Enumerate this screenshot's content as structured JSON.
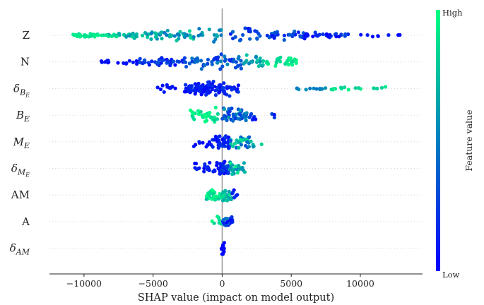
{
  "chart_data": {
    "type": "scatter",
    "subtype": "beeswarm",
    "title": "",
    "xlabel": "SHAP value (impact on model output)",
    "xlim": [
      -12500,
      14500
    ],
    "xticks": [
      -10000,
      -5000,
      0,
      5000,
      10000
    ],
    "xtick_labels": [
      "−10000",
      "−5000",
      "0",
      "5000",
      "10000"
    ],
    "colorbar": {
      "high_label": "High",
      "low_label": "Low",
      "title": "Feature value",
      "low_color": "#0000ff",
      "high_color": "#00ff80"
    },
    "grid": false,
    "features": [
      {
        "label": "Z",
        "base": "Z",
        "sub": "",
        "subsub": "",
        "segments": [
          {
            "from": -11000,
            "to": -8500,
            "n": 32,
            "c": [
              0.85,
              0.95
            ]
          },
          {
            "from": -8500,
            "to": -5500,
            "n": 30,
            "c": [
              0.55,
              0.9
            ]
          },
          {
            "from": -5500,
            "to": -2000,
            "n": 42,
            "c": [
              0.45,
              0.85
            ]
          },
          {
            "from": -2000,
            "to": 0,
            "n": 14,
            "c": [
              0.35,
              0.7
            ]
          },
          {
            "from": 600,
            "to": 3000,
            "n": 20,
            "c": [
              0.1,
              0.4
            ]
          },
          {
            "from": 3000,
            "to": 6000,
            "n": 28,
            "c": [
              0.05,
              0.4
            ]
          },
          {
            "from": 6000,
            "to": 9300,
            "n": 30,
            "c": [
              0.0,
              0.3
            ]
          },
          {
            "from": 10000,
            "to": 13000,
            "n": 8,
            "c": [
              0.0,
              0.15
            ]
          }
        ],
        "spread": 13
      },
      {
        "label": "N",
        "base": "N",
        "sub": "",
        "subsub": "",
        "segments": [
          {
            "from": -8800,
            "to": -6000,
            "n": 18,
            "c": [
              0.0,
              0.15
            ]
          },
          {
            "from": -6000,
            "to": -2500,
            "n": 40,
            "c": [
              0.0,
              0.35
            ]
          },
          {
            "from": -2500,
            "to": 1500,
            "n": 48,
            "c": [
              0.15,
              0.55
            ]
          },
          {
            "from": 1500,
            "to": 3000,
            "n": 20,
            "c": [
              0.5,
              0.8
            ]
          },
          {
            "from": 3000,
            "to": 5500,
            "n": 30,
            "c": [
              0.8,
              1.0
            ]
          }
        ],
        "spread": 13
      },
      {
        "label": "δ_{B_E}",
        "base": "δ",
        "sub": "B",
        "subsub": "E",
        "segments": [
          {
            "from": -5100,
            "to": -2700,
            "n": 12,
            "c": [
              0.0,
              0.1
            ]
          },
          {
            "from": -2700,
            "to": 0,
            "n": 90,
            "c": [
              0.0,
              0.2
            ]
          },
          {
            "from": 0,
            "to": 1200,
            "n": 22,
            "c": [
              0.0,
              0.3
            ]
          },
          {
            "from": 5000,
            "to": 7500,
            "n": 12,
            "c": [
              0.4,
              0.6
            ]
          },
          {
            "from": 7500,
            "to": 12000,
            "n": 16,
            "c": [
              0.8,
              1.0
            ]
          }
        ],
        "spread": 12
      },
      {
        "label": "B_E",
        "base": "B",
        "sub": "E",
        "subsub": "",
        "segments": [
          {
            "from": -2300,
            "to": 0,
            "n": 34,
            "c": [
              0.8,
              1.0
            ]
          },
          {
            "from": 0,
            "to": 1800,
            "n": 46,
            "c": [
              0.2,
              0.6
            ]
          },
          {
            "from": 1800,
            "to": 4200,
            "n": 10,
            "c": [
              0.0,
              0.3
            ]
          }
        ],
        "spread": 12
      },
      {
        "label": "M_E",
        "base": "M",
        "sub": "E",
        "subsub": "",
        "segments": [
          {
            "from": -2100,
            "to": -300,
            "n": 18,
            "c": [
              0.0,
              0.2
            ]
          },
          {
            "from": -300,
            "to": 600,
            "n": 40,
            "c": [
              0.0,
              0.25
            ]
          },
          {
            "from": 600,
            "to": 2000,
            "n": 28,
            "c": [
              0.3,
              0.9
            ]
          },
          {
            "from": 2000,
            "to": 3000,
            "n": 6,
            "c": [
              0.5,
              0.9
            ]
          }
        ],
        "spread": 12
      },
      {
        "label": "δ_{M_E}",
        "base": "δ",
        "sub": "M",
        "subsub": "E",
        "segments": [
          {
            "from": -2000,
            "to": -300,
            "n": 22,
            "c": [
              0.0,
              0.2
            ]
          },
          {
            "from": -300,
            "to": 500,
            "n": 36,
            "c": [
              0.0,
              0.3
            ]
          },
          {
            "from": 500,
            "to": 1700,
            "n": 26,
            "c": [
              0.5,
              1.0
            ]
          }
        ],
        "spread": 11
      },
      {
        "label": "AM",
        "base": "AM",
        "sub": "",
        "subsub": "",
        "segments": [
          {
            "from": -1200,
            "to": 0,
            "n": 28,
            "c": [
              0.75,
              1.0
            ]
          },
          {
            "from": 0,
            "to": 700,
            "n": 20,
            "c": [
              0.6,
              0.9
            ]
          },
          {
            "from": 700,
            "to": 1200,
            "n": 6,
            "c": [
              0.0,
              0.2
            ]
          }
        ],
        "spread": 10
      },
      {
        "label": "A",
        "base": "A",
        "sub": "",
        "subsub": "",
        "segments": [
          {
            "from": -800,
            "to": 0,
            "n": 8,
            "c": [
              0.8,
              1.0
            ]
          },
          {
            "from": 0,
            "to": 600,
            "n": 16,
            "c": [
              0.0,
              0.5
            ]
          },
          {
            "from": 600,
            "to": 900,
            "n": 4,
            "c": [
              0.0,
              0.2
            ]
          }
        ],
        "spread": 9
      },
      {
        "label": "δ_{AM}",
        "base": "δ",
        "sub": "AM",
        "subsub": "",
        "segments": [
          {
            "from": -50,
            "to": 150,
            "n": 16,
            "c": [
              0.0,
              0.05
            ]
          }
        ],
        "spread": 9
      }
    ]
  }
}
